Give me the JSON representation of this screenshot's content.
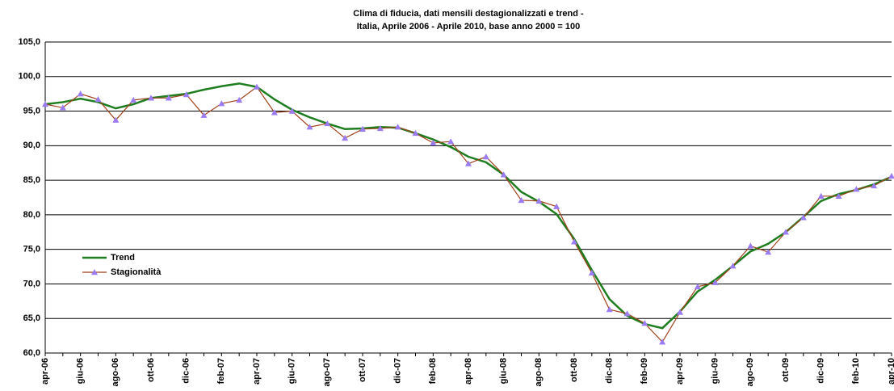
{
  "chart_data": {
    "type": "line",
    "title": [
      "Clima di fiducia, dati mensili destagionalizzati e trend -",
      "Italia, Aprile 2006 - Aprile 2010, base anno 2000 = 100"
    ],
    "categories": [
      "apr-06",
      null,
      "giu-06",
      null,
      "ago-06",
      null,
      "ott-06",
      null,
      "dic-06",
      null,
      "feb-07",
      null,
      "apr-07",
      null,
      "giu-07",
      null,
      "ago-07",
      null,
      "ott-07",
      null,
      "dic-07",
      null,
      "feb-08",
      null,
      "apr-08",
      null,
      "giu-08",
      null,
      "ago-08",
      null,
      "ott-08",
      null,
      "dic-08",
      null,
      "feb-09",
      null,
      "apr-09",
      null,
      "giu-09",
      null,
      "ago-09",
      null,
      "ott-09",
      null,
      "dic-09",
      null,
      "feb-10",
      null,
      "apr-10"
    ],
    "series": [
      {
        "name": "Trend",
        "color": "#1e7d1e",
        "values": [
          96.0,
          96.3,
          96.8,
          96.3,
          95.4,
          96.0,
          96.9,
          97.2,
          97.5,
          98.1,
          98.6,
          99.0,
          98.5,
          96.7,
          95.2,
          94.1,
          93.2,
          92.4,
          92.5,
          92.7,
          92.6,
          91.8,
          90.9,
          89.8,
          88.4,
          87.6,
          85.8,
          83.3,
          81.9,
          80.1,
          76.5,
          72.0,
          67.8,
          65.4,
          64.2,
          63.6,
          66.0,
          68.9,
          70.6,
          72.6,
          74.7,
          75.8,
          77.5,
          79.7,
          82.0,
          83.0,
          83.6,
          84.4,
          85.5
        ]
      },
      {
        "name": "Stagionalità",
        "color": "#a0401a",
        "marker_color": "#9b7cf2",
        "values": [
          96.0,
          95.5,
          97.5,
          96.7,
          93.7,
          96.6,
          96.9,
          96.9,
          97.4,
          94.4,
          96.1,
          96.6,
          98.5,
          94.8,
          95.0,
          92.7,
          93.2,
          91.1,
          92.4,
          92.5,
          92.7,
          91.8,
          90.4,
          90.6,
          87.4,
          88.4,
          85.8,
          82.1,
          82.0,
          81.2,
          76.1,
          71.6,
          66.3,
          65.7,
          64.3,
          61.6,
          65.9,
          69.6,
          70.2,
          72.6,
          75.5,
          74.6,
          77.5,
          79.6,
          82.7,
          82.7,
          83.7,
          84.2,
          85.6
        ]
      }
    ],
    "ylim": [
      60,
      105
    ],
    "yticks": [
      {
        "value": 60,
        "label": "60,0"
      },
      {
        "value": 65,
        "label": "65,0"
      },
      {
        "value": 70,
        "label": "70,0"
      },
      {
        "value": 75,
        "label": "75,0"
      },
      {
        "value": 80,
        "label": "80,0"
      },
      {
        "value": 85,
        "label": "85,0"
      },
      {
        "value": 90,
        "label": "90,0"
      },
      {
        "value": 95,
        "label": "95,0"
      },
      {
        "value": 100,
        "label": "100,0"
      },
      {
        "value": 105,
        "label": "105,0"
      }
    ],
    "grid": true,
    "legend": "left"
  }
}
